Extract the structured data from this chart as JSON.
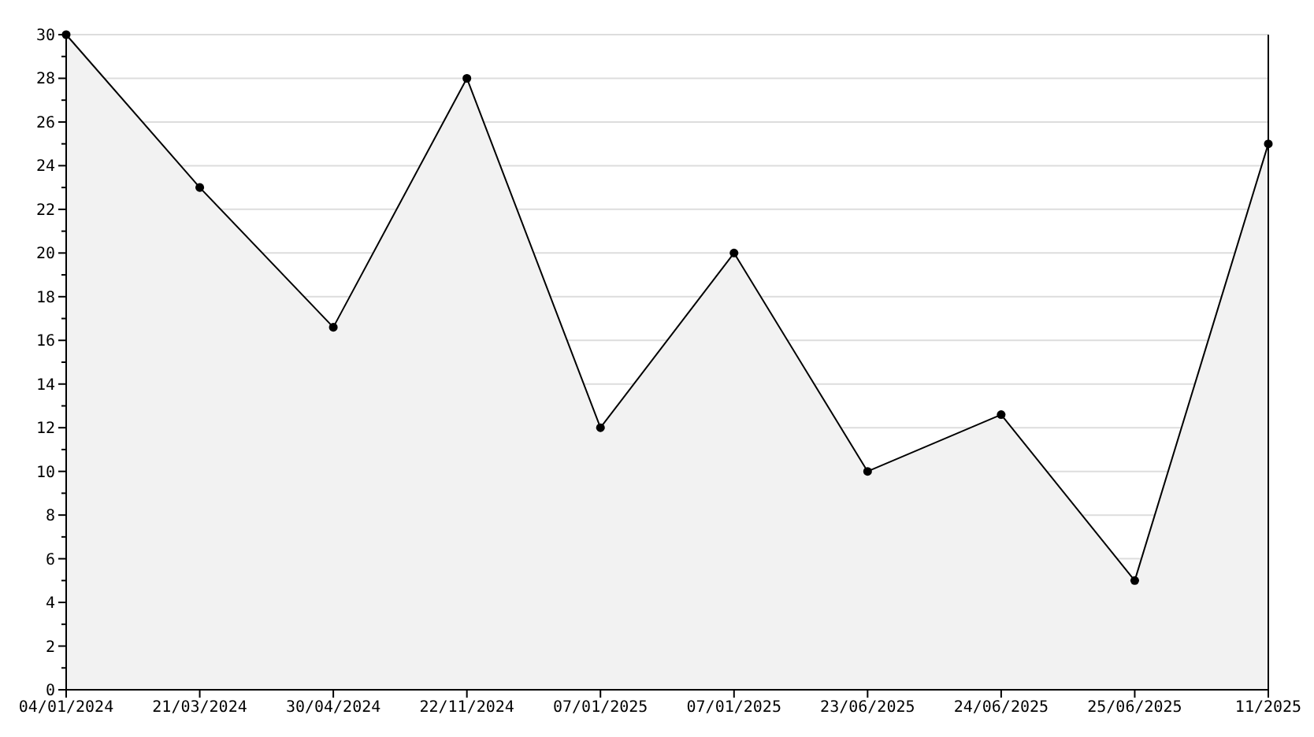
{
  "chart_data": {
    "type": "area",
    "categories": [
      "04/01/2024",
      "21/03/2024",
      "30/04/2024",
      "22/11/2024",
      "07/01/2025",
      "07/01/2025",
      "23/06/2025",
      "24/06/2025",
      "25/06/2025",
      "11/2025"
    ],
    "series": [
      {
        "color": "#f2f2f2",
        "values": [
          30,
          23,
          16.6,
          28,
          12,
          20,
          10,
          12.6,
          5,
          25
        ]
      }
    ],
    "ylim": [
      0,
      30
    ],
    "yticks": [
      0,
      {
        "value": 1,
        "label": null
      },
      2,
      {
        "value": 3,
        "label": null
      },
      4,
      {
        "value": 5,
        "label": null
      },
      6,
      {
        "value": 7,
        "label": null
      },
      8,
      {
        "value": 9,
        "label": null
      },
      10,
      {
        "value": 11,
        "label": null
      },
      12,
      {
        "value": 13,
        "label": null
      },
      14,
      {
        "value": 15,
        "label": null
      },
      16,
      {
        "value": 17,
        "label": null
      },
      18,
      {
        "value": 19,
        "label": null
      },
      20,
      {
        "value": 21,
        "label": null
      },
      22,
      {
        "value": 23,
        "label": null
      },
      24,
      {
        "value": 25,
        "label": null
      },
      26,
      {
        "value": 27,
        "label": null
      },
      28,
      {
        "value": 29,
        "label": null
      },
      30
    ],
    "grid": "y",
    "marker": "circle",
    "line_style": "solid"
  }
}
